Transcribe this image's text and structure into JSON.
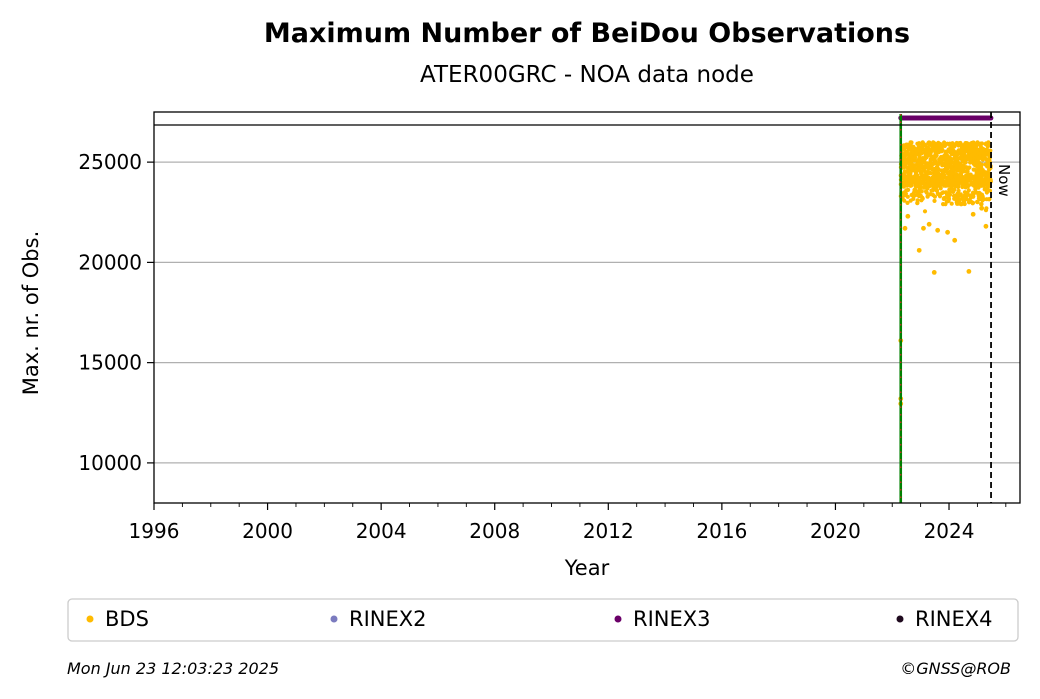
{
  "chart_data": {
    "type": "scatter",
    "title": "Maximum Number of BeiDou Observations",
    "subtitle": "ATER00GRC - NOA data node",
    "xlabel": "Year",
    "ylabel": "Max. nr. of Obs.",
    "xlim": [
      1996.0,
      2026.5
    ],
    "ylim": [
      8000,
      27500
    ],
    "xticks": [
      1996,
      2000,
      2004,
      2008,
      2012,
      2016,
      2020,
      2024
    ],
    "xtick_labels": [
      "1996",
      "2000",
      "2004",
      "2008",
      "2012",
      "2016",
      "2020",
      "2024"
    ],
    "yticks": [
      10000,
      15000,
      20000,
      25000
    ],
    "ytick_labels": [
      "10000",
      "15000",
      "20000",
      "25000"
    ],
    "grid": "horizontal",
    "first_data_marker_x": 2022.3,
    "now_marker": {
      "x": 2025.48,
      "label": "Now"
    },
    "series": [
      {
        "name": "BDS",
        "color": "#FFBB00",
        "x_range": [
          2022.3,
          2025.48
        ],
        "typical_range": [
          22500,
          26000
        ],
        "points": [
          {
            "x": 2022.3,
            "y": 16100
          },
          {
            "x": 2022.3,
            "y": 13200
          },
          {
            "x": 2022.3,
            "y": 12950
          },
          {
            "x": 2022.45,
            "y": 21700
          },
          {
            "x": 2022.55,
            "y": 22300
          },
          {
            "x": 2022.95,
            "y": 20600
          },
          {
            "x": 2023.1,
            "y": 21700
          },
          {
            "x": 2023.3,
            "y": 21900
          },
          {
            "x": 2023.48,
            "y": 19500
          },
          {
            "x": 2023.6,
            "y": 21600
          },
          {
            "x": 2023.95,
            "y": 21500
          },
          {
            "x": 2024.2,
            "y": 21100
          },
          {
            "x": 2024.7,
            "y": 19550
          },
          {
            "x": 2024.85,
            "y": 22400
          },
          {
            "x": 2025.15,
            "y": 22700
          },
          {
            "x": 2025.3,
            "y": 21800
          }
        ]
      },
      {
        "name": "RINEX2",
        "color": "#7B7BBF"
      },
      {
        "name": "RINEX3",
        "color": "#6A0068",
        "x_range": [
          2022.3,
          2025.48
        ],
        "y": 27200
      },
      {
        "name": "RINEX4",
        "color": "#1F0A1E"
      }
    ],
    "legend_position": "bottom"
  },
  "footer": {
    "timestamp": "Mon Jun 23 12:03:23 2025",
    "credit": "©GNSS@ROB"
  }
}
